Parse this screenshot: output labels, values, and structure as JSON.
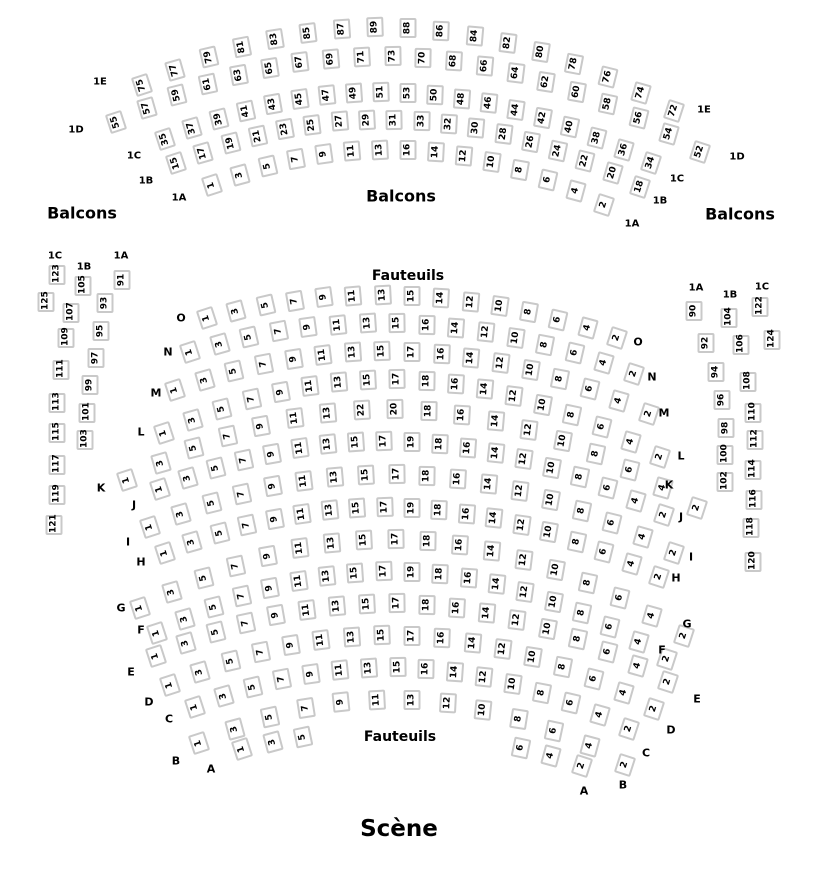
{
  "stage": {
    "label": "Scène"
  },
  "colors": {
    "background": "#ffffff",
    "seat_fill": "#ffffff",
    "seat_border": "#c9c9c9",
    "seat_text": "#000000",
    "label_text": "#000000"
  },
  "balcony": {
    "labels": {
      "left": "Balcons",
      "center": "Balcons",
      "right": "Balcons"
    },
    "rows": [
      {
        "id": "1E",
        "seats": [
          75,
          77,
          79,
          81,
          83,
          85,
          87,
          89,
          88,
          86,
          84,
          82,
          80,
          78,
          76,
          74,
          72
        ]
      },
      {
        "id": "1D",
        "seats": [
          55,
          57,
          59,
          61,
          63,
          65,
          67,
          69,
          71,
          73,
          70,
          68,
          66,
          64,
          62,
          60,
          58,
          56,
          54,
          52
        ]
      },
      {
        "id": "1C",
        "seats": [
          35,
          37,
          39,
          41,
          43,
          45,
          47,
          49,
          51,
          53,
          50,
          48,
          46,
          44,
          42,
          40,
          38,
          36,
          34
        ]
      },
      {
        "id": "1B",
        "seats": [
          15,
          17,
          19,
          21,
          23,
          25,
          27,
          29,
          31,
          33,
          32,
          30,
          28,
          26,
          24,
          22,
          20,
          18
        ]
      },
      {
        "id": "1A",
        "seats": [
          1,
          3,
          5,
          7,
          9,
          11,
          13,
          16,
          14,
          12,
          10,
          8,
          6,
          4,
          2
        ]
      }
    ]
  },
  "orchestra": {
    "labels": {
      "top": "Fauteuils",
      "bottom": "Fauteuils"
    },
    "rows": [
      {
        "id": "O",
        "seats": [
          1,
          3,
          5,
          7,
          9,
          11,
          13,
          15,
          14,
          12,
          10,
          8,
          6,
          4,
          2
        ]
      },
      {
        "id": "N",
        "seats": [
          1,
          3,
          5,
          7,
          9,
          11,
          13,
          15,
          16,
          14,
          12,
          10,
          8,
          6,
          4,
          2
        ]
      },
      {
        "id": "M",
        "seats": [
          1,
          3,
          5,
          7,
          9,
          11,
          13,
          15,
          17,
          16,
          14,
          12,
          10,
          8,
          6,
          4,
          2
        ]
      },
      {
        "id": "L",
        "seats": [
          1,
          3,
          5,
          7,
          9,
          11,
          13,
          15,
          17,
          18,
          16,
          14,
          12,
          10,
          8,
          6,
          4,
          2
        ]
      },
      {
        "id": "K",
        "seats": [
          1,
          3,
          5,
          7,
          9,
          11,
          13,
          22,
          20,
          18,
          16,
          14,
          12,
          10,
          8,
          6,
          4,
          2
        ]
      },
      {
        "id": "J",
        "seats": [
          1,
          3,
          5,
          7,
          9,
          11,
          13,
          15,
          17,
          19,
          18,
          16,
          14,
          12,
          10,
          8,
          6,
          4,
          2
        ]
      },
      {
        "id": "I",
        "seats": [
          1,
          3,
          5,
          7,
          9,
          11,
          13,
          15,
          17,
          18,
          16,
          14,
          12,
          10,
          8,
          6,
          4,
          2
        ]
      },
      {
        "id": "H",
        "seats": [
          1,
          3,
          5,
          7,
          9,
          11,
          13,
          15,
          17,
          19,
          18,
          16,
          14,
          12,
          10,
          8,
          6,
          4,
          2
        ]
      },
      {
        "id": "G",
        "seats": [
          1,
          3,
          5,
          7,
          9,
          11,
          13,
          15,
          17,
          18,
          16,
          14,
          12,
          10,
          8,
          6,
          4,
          2
        ]
      },
      {
        "id": "F",
        "seats": [
          1,
          3,
          5,
          7,
          9,
          11,
          13,
          15,
          17,
          19,
          18,
          16,
          14,
          12,
          10,
          8,
          6,
          4,
          2
        ]
      },
      {
        "id": "E",
        "seats": [
          1,
          3,
          5,
          7,
          9,
          11,
          13,
          15,
          17,
          18,
          16,
          14,
          12,
          10,
          8,
          6,
          4,
          2
        ]
      },
      {
        "id": "D",
        "seats": [
          1,
          3,
          5,
          7,
          9,
          11,
          13,
          15,
          17,
          16,
          14,
          12,
          10,
          8,
          6,
          4,
          2
        ]
      },
      {
        "id": "C",
        "seats": [
          1,
          3,
          5,
          7,
          9,
          11,
          13,
          15,
          16,
          14,
          12,
          10,
          8,
          6,
          4,
          2
        ]
      },
      {
        "id": "B",
        "seats": [
          1,
          3,
          5,
          7,
          9,
          11,
          13,
          12,
          10,
          8,
          6,
          4,
          2
        ]
      },
      {
        "id": "A",
        "seats": [
          1,
          3,
          5,
          6,
          4,
          2
        ]
      }
    ],
    "side_left": {
      "columns": [
        {
          "id": "1C",
          "seats": [
            123,
            125
          ]
        },
        {
          "id": "1B",
          "seats": [
            105,
            107,
            109,
            111,
            113,
            115,
            117,
            119,
            121
          ]
        },
        {
          "id": "1A",
          "seats": [
            91,
            93,
            95,
            97,
            99,
            101,
            103
          ]
        }
      ]
    },
    "side_right": {
      "columns": [
        {
          "id": "1A",
          "seats": [
            90,
            92,
            94,
            96,
            98,
            100,
            102
          ]
        },
        {
          "id": "1B",
          "seats": [
            104,
            106,
            108,
            110,
            112,
            114,
            116,
            118,
            120
          ]
        },
        {
          "id": "1C",
          "seats": [
            122,
            124
          ]
        }
      ]
    }
  }
}
